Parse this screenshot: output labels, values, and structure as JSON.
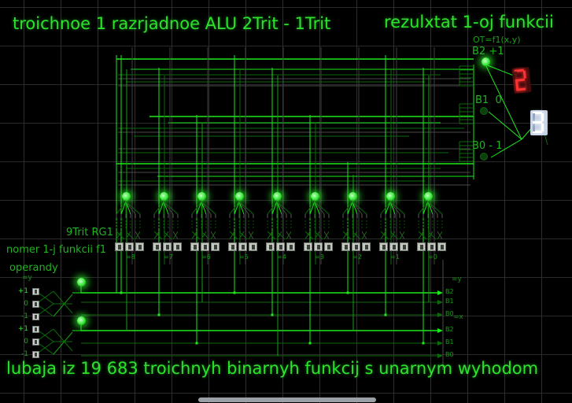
{
  "titles": {
    "top_left": "troichnoe 1 razrjadnoe ALU 2Trit - 1Trit",
    "top_right": "rezulxtat 1-oj funkcii",
    "bottom": "lubaja iz 19 683 troichnyh binarnyh funkcij s unarnym wyhodom"
  },
  "section_labels": {
    "register": "9Trit RG1",
    "function_number": "nomer 1-j funkcii f1",
    "operands": "operandy"
  },
  "outputs": {
    "formula": "OT=f1(x,y)",
    "bits": [
      {
        "label": "B2 +1",
        "led": "on"
      },
      {
        "label": "B1  0",
        "led": "off"
      },
      {
        "label": "B0 - 1",
        "led": "off"
      }
    ],
    "displays": [
      {
        "name": "red-display",
        "value": "2",
        "on": "#ff3232",
        "off": "#611212",
        "body": "#420c0c"
      },
      {
        "name": "white-display",
        "value": "3",
        "on": "#ffffff",
        "off": "#94a8c6",
        "body": "#c4d1e6"
      }
    ]
  },
  "modules": [
    {
      "label": "=8"
    },
    {
      "label": "=7"
    },
    {
      "label": "=6"
    },
    {
      "label": "=5"
    },
    {
      "label": "=4"
    },
    {
      "label": "=3"
    },
    {
      "label": "=2"
    },
    {
      "label": "=1"
    },
    {
      "label": "=0"
    }
  ],
  "switches_per_module": 3,
  "operands": {
    "groups": [
      {
        "net": "=y",
        "rows": [
          "+1",
          "0",
          "-1"
        ]
      },
      {
        "net": "=x",
        "rows": [
          "+1",
          "0",
          "-1"
        ]
      }
    ]
  },
  "bus": {
    "groups": [
      {
        "net": "=y",
        "lines": [
          "B2",
          "B1",
          "B0"
        ]
      },
      {
        "net": "=x",
        "lines": [
          "B2",
          "B1",
          "B0"
        ]
      }
    ]
  },
  "colors": {
    "wire_on": "#1ce81c",
    "wire_mid": "#12a012",
    "wire_off": "#0c6c0c",
    "wire_gray": "#4a4a4a",
    "text_bright": "#2ce22c",
    "led_on": "#35e835",
    "grid": "#2e2e2e"
  }
}
